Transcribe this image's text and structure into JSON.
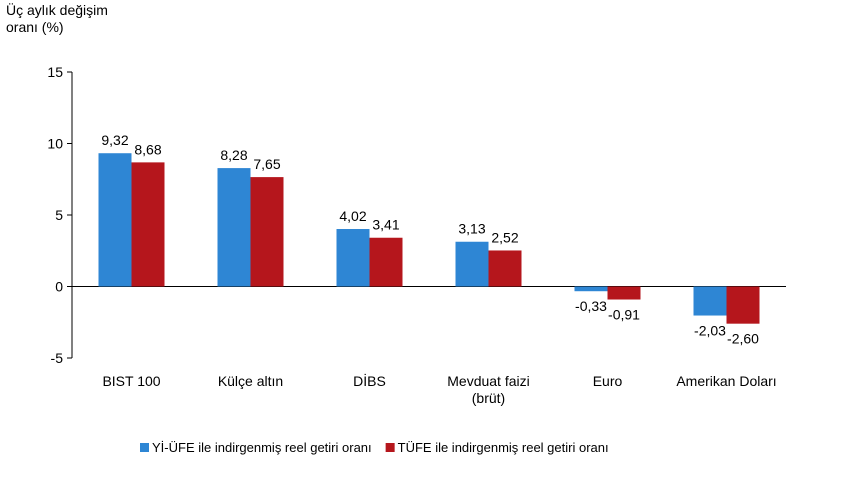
{
  "chart_data": {
    "type": "bar",
    "ylabel_lines": [
      "Üç aylık değişim",
      "oranı (%)"
    ],
    "categories": [
      [
        "BIST 100"
      ],
      [
        "Külçe altın"
      ],
      [
        "DİBS"
      ],
      [
        "Mevduat faizi",
        "(brüt)"
      ],
      [
        "Euro"
      ],
      [
        "Amerikan Doları"
      ]
    ],
    "series": [
      {
        "name": "Yİ-ÜFE ile indirgenmiş reel getiri oranı",
        "color": "#2e86d4",
        "values": [
          9.32,
          8.28,
          4.02,
          3.13,
          -0.33,
          -2.03
        ],
        "labels": [
          "9,32",
          "8,28",
          "4,02",
          "3,13",
          "-0,33",
          "-2,03"
        ]
      },
      {
        "name": "TÜFE ile indirgenmiş reel getiri oranı",
        "color": "#b5161c",
        "values": [
          8.68,
          7.65,
          3.41,
          2.52,
          -0.91,
          -2.6
        ],
        "labels": [
          "8,68",
          "7,65",
          "3,41",
          "2,52",
          "-0,91",
          "-2,60"
        ]
      }
    ],
    "ylim": [
      -5,
      15
    ],
    "yticks": [
      -5,
      0,
      5,
      10,
      15
    ],
    "ytick_labels": [
      "-5",
      "0",
      "5",
      "10",
      "15"
    ],
    "grid": false,
    "legend_position": "bottom"
  }
}
